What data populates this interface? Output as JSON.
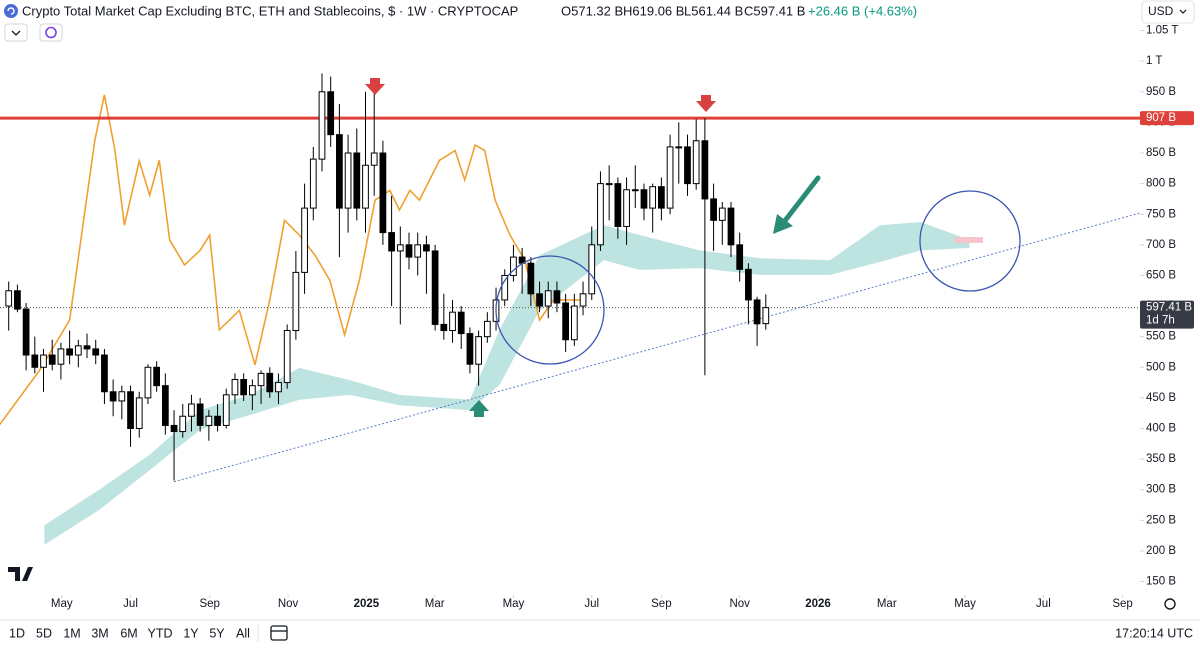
{
  "chart_data": {
    "type": "candlestick",
    "header": {
      "title": "Crypto Total Market Cap Excluding BTC, ETH and Stablecoins, $ · 1W · CRYPTOCAP",
      "ohlc": [
        "O571.32 B",
        "H619.06 B",
        "L561.44 B",
        "C597.41 B"
      ],
      "change": "+26.46 B (+4.63%)"
    },
    "currency": "USD",
    "categories": [
      null,
      null,
      null,
      null,
      null,
      null,
      null,
      null,
      null,
      null,
      null,
      null,
      null,
      null,
      null,
      null,
      null,
      null,
      null,
      null,
      null,
      null,
      null,
      null,
      null,
      null,
      null,
      null,
      null,
      null,
      null,
      null,
      null,
      null,
      null,
      null,
      null,
      null,
      null,
      null,
      null,
      null,
      null,
      null,
      null,
      null,
      null,
      null,
      null,
      null,
      null,
      null,
      null,
      null,
      null,
      null,
      null,
      null,
      null,
      null,
      null,
      null,
      null,
      null,
      null,
      null,
      null,
      null,
      null,
      null,
      null,
      null,
      null,
      null,
      null,
      null,
      null,
      null,
      null,
      null,
      null,
      null,
      null,
      null,
      null,
      null,
      null,
      null
    ],
    "open": [
      600,
      625,
      595,
      520,
      500,
      520,
      505,
      530,
      520,
      535,
      530,
      520,
      460,
      445,
      460,
      400,
      450,
      500,
      470,
      405,
      395,
      420,
      440,
      405,
      420,
      405,
      455,
      480,
      455,
      470,
      490,
      460,
      475,
      560,
      655,
      760,
      840,
      950,
      880,
      760,
      850,
      760,
      830,
      850,
      720,
      690,
      700,
      680,
      700,
      690,
      570,
      560,
      590,
      555,
      505,
      550,
      575,
      610,
      650,
      680,
      670,
      620,
      600,
      625,
      605,
      545,
      600,
      620,
      700,
      800,
      800,
      730,
      790,
      790,
      760,
      795,
      760,
      860,
      860,
      800,
      870,
      775,
      740,
      760,
      700,
      660,
      610,
      571.32
    ],
    "high": [
      640,
      635,
      605,
      550,
      530,
      545,
      540,
      560,
      545,
      555,
      545,
      530,
      480,
      470,
      470,
      460,
      505,
      510,
      490,
      430,
      440,
      455,
      450,
      430,
      440,
      465,
      490,
      490,
      480,
      495,
      500,
      490,
      570,
      690,
      800,
      860,
      980,
      975,
      930,
      880,
      890,
      950,
      955,
      870,
      780,
      730,
      720,
      720,
      715,
      700,
      620,
      610,
      600,
      565,
      560,
      590,
      630,
      660,
      700,
      695,
      680,
      640,
      640,
      640,
      620,
      620,
      640,
      730,
      820,
      830,
      810,
      810,
      830,
      800,
      800,
      810,
      880,
      900,
      880,
      905,
      907,
      800,
      770,
      770,
      720,
      670,
      615,
      619.06
    ],
    "low": [
      560,
      590,
      495,
      490,
      460,
      495,
      480,
      505,
      500,
      515,
      505,
      440,
      420,
      415,
      370,
      385,
      440,
      460,
      390,
      315,
      385,
      395,
      395,
      380,
      395,
      400,
      440,
      445,
      430,
      440,
      450,
      440,
      465,
      545,
      620,
      740,
      820,
      860,
      680,
      720,
      740,
      720,
      780,
      700,
      600,
      570,
      660,
      650,
      620,
      560,
      545,
      540,
      530,
      490,
      470,
      540,
      560,
      600,
      640,
      620,
      600,
      590,
      580,
      590,
      525,
      535,
      585,
      610,
      690,
      740,
      710,
      700,
      760,
      740,
      720,
      740,
      750,
      800,
      780,
      790,
      487,
      690,
      700,
      680,
      640,
      570,
      535,
      561.44
    ],
    "close": [
      625,
      595,
      520,
      500,
      520,
      505,
      530,
      520,
      535,
      530,
      520,
      460,
      445,
      460,
      400,
      450,
      500,
      470,
      405,
      395,
      420,
      440,
      405,
      420,
      405,
      455,
      480,
      455,
      470,
      490,
      460,
      475,
      560,
      655,
      760,
      840,
      950,
      880,
      760,
      850,
      760,
      830,
      850,
      720,
      690,
      700,
      680,
      700,
      690,
      570,
      560,
      590,
      555,
      505,
      550,
      575,
      610,
      650,
      680,
      670,
      620,
      600,
      625,
      605,
      545,
      600,
      620,
      700,
      800,
      800,
      730,
      790,
      790,
      760,
      795,
      760,
      860,
      860,
      800,
      870,
      775,
      740,
      760,
      700,
      660,
      610,
      571,
      597.41
    ],
    "up_color": "#ffffff",
    "down_color": "#000000",
    "overlay": {
      "color": "#f0a030",
      "x": [
        -1.05,
        3.55,
        7.0,
        9.9,
        11.0,
        12.2,
        13.3,
        15.0,
        16.2,
        17.3,
        18.5,
        20.2,
        22.0,
        23.1,
        24.2,
        26.5,
        28.3,
        30.0,
        31.7,
        33.4,
        35.2,
        36.9,
        38.6,
        40.3,
        42.1,
        43.8,
        44.9,
        46.1,
        47.2,
        49.5,
        51.3,
        52.4,
        53.6,
        54.7,
        55.9,
        57.6,
        59.3,
        61.0,
        62.6,
        65.6
      ],
      "values": [
        406,
        495,
        577,
        871,
        945,
        855,
        732,
        837,
        781,
        838,
        708,
        667,
        691,
        716,
        561,
        593,
        504,
        610,
        740,
        716,
        683,
        642,
        553,
        642,
        773,
        789,
        757,
        789,
        773,
        838,
        854,
        806,
        863,
        854,
        773,
        716,
        675,
        577,
        610,
        610
      ]
    },
    "cloud": {
      "color": "#b2dfdb",
      "x": [
        4.1,
        10.4,
        16.2,
        22.0,
        27.7,
        33.4,
        39.2,
        44.9,
        53.0,
        56.4,
        61.0,
        68.4,
        72.5,
        79.4,
        86.3,
        94.4,
        100.1,
        104.8,
        110.4
      ],
      "upper": [
        242,
        300,
        357,
        430,
        455,
        499,
        479,
        455,
        447,
        561,
        683,
        732,
        716,
        691,
        678,
        675,
        732,
        737,
        708
      ],
      "lower": [
        210,
        267,
        332,
        398,
        422,
        447,
        455,
        438,
        430,
        471,
        593,
        675,
        659,
        662,
        651,
        651,
        672,
        691,
        695
      ]
    },
    "trendline": {
      "color": "#5b7fc7",
      "x": [
        19,
        130
      ],
      "values": [
        313,
        752
      ]
    },
    "price_lines": [
      {
        "value": 907,
        "label": "907 B",
        "color": "#e0403a"
      },
      {
        "value": 597.41,
        "label": "597.41 B",
        "countdown": "1d 7h",
        "color": "#363a45"
      }
    ],
    "xlim": [
      -1,
      130
    ],
    "xticks": [
      {
        "value": 6.1,
        "label": "May"
      },
      {
        "value": 14.0,
        "label": "Jul"
      },
      {
        "value": 23.1,
        "label": "Sep"
      },
      {
        "value": 32.1,
        "label": "Nov"
      },
      {
        "value": 41.1,
        "label": "2025"
      },
      {
        "value": 48.95,
        "label": "Mar"
      },
      {
        "value": 58.0,
        "label": "May"
      },
      {
        "value": 67.0,
        "label": "Jul"
      },
      {
        "value": 75.0,
        "label": "Sep"
      },
      {
        "value": 84.0,
        "label": "Nov"
      },
      {
        "value": 93.0,
        "label": "2026"
      },
      {
        "value": 100.9,
        "label": "Mar"
      },
      {
        "value": 109.9,
        "label": "May"
      },
      {
        "value": 118.9,
        "label": "Jul"
      },
      {
        "value": 128.0,
        "label": "Sep"
      }
    ],
    "ylim": [
      128,
      1064
    ],
    "yticks": [
      {
        "value": 1050,
        "label": "1.05 T"
      },
      {
        "value": 1000,
        "label": "1 T"
      },
      {
        "value": 950,
        "label": "950 B"
      },
      {
        "value": 900,
        "label": "900 B"
      },
      {
        "value": 850,
        "label": "850 B"
      },
      {
        "value": 800,
        "label": "800 B"
      },
      {
        "value": 750,
        "label": "750 B"
      },
      {
        "value": 700,
        "label": "700 B"
      },
      {
        "value": 650,
        "label": "650 B"
      },
      {
        "value": 600,
        "label": "600 B"
      },
      {
        "value": 550,
        "label": "550 B"
      },
      {
        "value": 500,
        "label": "500 B"
      },
      {
        "value": 450,
        "label": "450 B"
      },
      {
        "value": 400,
        "label": "400 B"
      },
      {
        "value": 350,
        "label": "350 B"
      },
      {
        "value": 300,
        "label": "300 B"
      },
      {
        "value": 250,
        "label": "250 B"
      },
      {
        "value": 200,
        "label": "200 B"
      },
      {
        "value": 150,
        "label": "150 B"
      }
    ],
    "toolbar": {
      "ranges": [
        "1D",
        "5D",
        "1M",
        "3M",
        "6M",
        "YTD",
        "1Y",
        "5Y",
        "All"
      ],
      "clock": "17:20:14 UTC"
    }
  }
}
